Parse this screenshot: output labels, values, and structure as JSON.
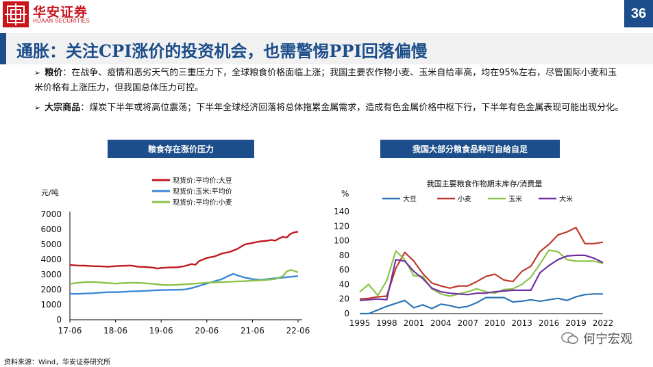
{
  "header": {
    "logo_cn": "华安证券",
    "logo_en": "HUAAN SECURITIES",
    "page_number": "36",
    "title": "通胀：关注CPI涨价的投资机会，也需警惕PPI回落偏慢"
  },
  "bullets": [
    {
      "marker": "➢",
      "label": "粮价",
      "text": "：在战争、疫情和恶劣天气的三重压力下，全球粮食价格面临上涨；我国主要农作物小麦、玉米自给率高，均在95%左右，尽管国际小麦和玉米价格有上涨压力，但我国总体压力可控。"
    },
    {
      "marker": "➢",
      "label": "大宗商品",
      "text": "：煤炭下半年或将高位震荡；下半年全球经济回落将总体拖累金属需求，造成有色金属价格中枢下行，下半年有色金属表现可能出现分化。"
    }
  ],
  "left_chart_label": "粮食存在涨价压力",
  "right_chart_label": "我国大部分粮食品种可自给自足",
  "source": "资料来源：Wind，华安证券研究所",
  "watermark": "何宁宏观",
  "colors": {
    "brand_red": "#c8161d",
    "brand_blue": "#1b4e8a",
    "soy": "#c0171d",
    "corn": "#3a87d8",
    "wheat": "#8bc34a",
    "r_soy": "#2e75b6",
    "r_wheat": "#c0392b",
    "r_corn": "#8bc34a",
    "r_rice": "#7030a0"
  },
  "chart_data": [
    {
      "type": "line",
      "title": "",
      "ylabel": "元/吨",
      "ylim": [
        0,
        7000
      ],
      "yticks": [
        0,
        1000,
        2000,
        3000,
        4000,
        5000,
        6000,
        7000
      ],
      "ytick_labels": [
        "0",
        "1000",
        "2000",
        "3000",
        "4000",
        "5000",
        "6000",
        "7000"
      ],
      "xlim": [
        0,
        60
      ],
      "xticks": [
        0,
        12,
        24,
        36,
        48,
        60
      ],
      "xtick_labels": [
        "17-06",
        "18-06",
        "19-06",
        "20-06",
        "21-06",
        "22-06"
      ],
      "legend": "top-right",
      "series": [
        {
          "name": "现货价:平均价:大豆",
          "x": [
            0,
            2,
            4,
            6,
            8,
            10,
            12,
            14,
            16,
            18,
            20,
            22,
            23,
            24,
            26,
            28,
            30,
            32,
            33,
            34,
            36,
            38,
            40,
            42,
            44,
            46,
            48,
            50,
            52,
            53,
            54,
            55,
            56,
            57,
            58,
            59,
            60
          ],
          "values": [
            3640,
            3600,
            3590,
            3560,
            3550,
            3520,
            3560,
            3580,
            3600,
            3520,
            3500,
            3460,
            3400,
            3440,
            3470,
            3480,
            3550,
            3700,
            3650,
            3900,
            4100,
            4200,
            4400,
            4500,
            4700,
            5000,
            5100,
            5200,
            5250,
            5300,
            5250,
            5400,
            5500,
            5450,
            5700,
            5800,
            5850
          ]
        },
        {
          "name": "现货价:玉米:平均价",
          "x": [
            0,
            2,
            4,
            6,
            8,
            10,
            12,
            14,
            16,
            18,
            20,
            22,
            24,
            26,
            28,
            30,
            32,
            34,
            36,
            38,
            40,
            42,
            43,
            44,
            46,
            48,
            50,
            52,
            54,
            56,
            58,
            60
          ],
          "values": [
            1730,
            1720,
            1740,
            1760,
            1800,
            1830,
            1830,
            1850,
            1880,
            1900,
            1920,
            1950,
            1970,
            1980,
            1990,
            2000,
            2100,
            2250,
            2400,
            2550,
            2700,
            2950,
            3050,
            2950,
            2800,
            2700,
            2650,
            2700,
            2750,
            2800,
            2850,
            2900
          ]
        },
        {
          "name": "现货价:平均价:小麦",
          "x": [
            0,
            2,
            4,
            6,
            8,
            10,
            12,
            14,
            16,
            18,
            20,
            22,
            24,
            26,
            28,
            30,
            32,
            34,
            36,
            38,
            40,
            42,
            44,
            46,
            48,
            50,
            52,
            54,
            56,
            57,
            58,
            59,
            60
          ],
          "values": [
            2380,
            2450,
            2500,
            2510,
            2480,
            2430,
            2400,
            2430,
            2460,
            2450,
            2420,
            2380,
            2320,
            2300,
            2320,
            2350,
            2380,
            2420,
            2460,
            2480,
            2500,
            2520,
            2550,
            2560,
            2600,
            2620,
            2650,
            2700,
            2900,
            3200,
            3300,
            3250,
            3150
          ]
        }
      ]
    },
    {
      "type": "line",
      "title": "我国主要粮食作物期末库存/消费量",
      "ylabel": "%",
      "ylim": [
        0,
        140
      ],
      "yticks": [
        0,
        20,
        40,
        60,
        80,
        100,
        120,
        140
      ],
      "ytick_labels": [
        "0",
        "20",
        "40",
        "60",
        "80",
        "100",
        "120",
        "140"
      ],
      "categories": [
        1995,
        1996,
        1997,
        1998,
        1999,
        2000,
        2001,
        2002,
        2003,
        2004,
        2005,
        2006,
        2007,
        2008,
        2009,
        2010,
        2011,
        2012,
        2013,
        2014,
        2015,
        2016,
        2017,
        2018,
        2019,
        2020,
        2021,
        2022
      ],
      "xtick_labels": [
        "1995",
        "1998",
        "2001",
        "2004",
        "2007",
        "2010",
        "2013",
        "2016",
        "2019",
        "2022"
      ],
      "legend": "top",
      "series": [
        {
          "name": "大豆",
          "values": [
            0,
            0,
            5,
            10,
            14,
            18,
            8,
            12,
            7,
            13,
            11,
            8,
            10,
            15,
            22,
            22,
            22,
            16,
            17,
            19,
            17,
            19,
            21,
            18,
            23,
            26,
            27,
            27
          ]
        },
        {
          "name": "小麦",
          "values": [
            20,
            21,
            23,
            24,
            62,
            84,
            72,
            55,
            42,
            38,
            35,
            38,
            38,
            44,
            51,
            54,
            46,
            44,
            58,
            65,
            85,
            95,
            108,
            112,
            118,
            96,
            96,
            98
          ]
        },
        {
          "name": "玉米",
          "values": [
            30,
            40,
            25,
            45,
            86,
            74,
            52,
            51,
            34,
            27,
            24,
            27,
            30,
            34,
            30,
            28,
            33,
            34,
            40,
            50,
            68,
            87,
            85,
            74,
            72,
            72,
            72,
            69
          ]
        },
        {
          "name": "大米",
          "values": [
            18,
            19,
            20,
            19,
            74,
            72,
            58,
            48,
            35,
            30,
            28,
            27,
            26,
            28,
            28,
            30,
            31,
            32,
            32,
            32,
            56,
            66,
            74,
            79,
            80,
            80,
            76,
            70
          ]
        }
      ]
    }
  ]
}
